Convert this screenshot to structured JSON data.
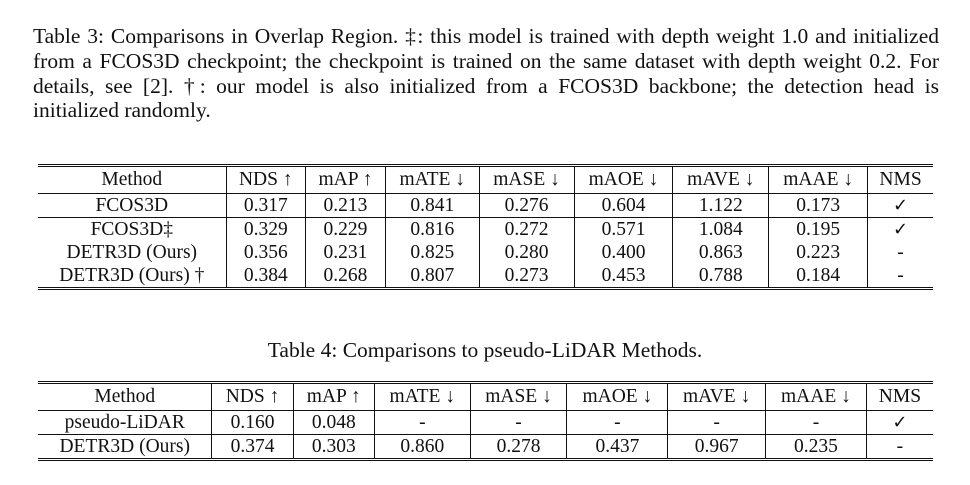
{
  "table3": {
    "caption": "Table 3: Comparisons in Overlap Region. ‡: this model is trained with depth weight 1.0 and initialized from a FCOS3D checkpoint; the checkpoint is trained on the same dataset with depth weight 0.2. For details, see [2]. †: our model is also initialized from a FCOS3D backbone; the detection head is initialized randomly.",
    "headers": [
      "Method",
      "NDS ↑",
      "mAP ↑",
      "mATE ↓",
      "mASE ↓",
      "mAOE ↓",
      "mAVE ↓",
      "mAAE ↓",
      "NMS"
    ],
    "rows": [
      [
        "FCOS3D",
        "0.317",
        "0.213",
        "0.841",
        "0.276",
        "0.604",
        "1.122",
        "0.173",
        "✓"
      ],
      [
        "FCOS3D‡",
        "0.329",
        "0.229",
        "0.816",
        "0.272",
        "0.571",
        "1.084",
        "0.195",
        "✓"
      ],
      [
        "DETR3D (Ours)",
        "0.356",
        "0.231",
        "0.825",
        "0.280",
        "0.400",
        "0.863",
        "0.223",
        "-"
      ],
      [
        "DETR3D (Ours) †",
        "0.384",
        "0.268",
        "0.807",
        "0.273",
        "0.453",
        "0.788",
        "0.184",
        "-"
      ]
    ]
  },
  "table4": {
    "caption": "Table 4: Comparisons to pseudo-LiDAR Methods.",
    "headers": [
      "Method",
      "NDS ↑",
      "mAP ↑",
      "mATE ↓",
      "mASE ↓",
      "mAOE ↓",
      "mAVE ↓",
      "mAAE ↓",
      "NMS"
    ],
    "rows": [
      [
        "pseudo-LiDAR",
        "0.160",
        "0.048",
        "-",
        "-",
        "-",
        "-",
        "-",
        "✓"
      ],
      [
        "DETR3D (Ours)",
        "0.374",
        "0.303",
        "0.860",
        "0.278",
        "0.437",
        "0.967",
        "0.235",
        "-"
      ]
    ]
  }
}
